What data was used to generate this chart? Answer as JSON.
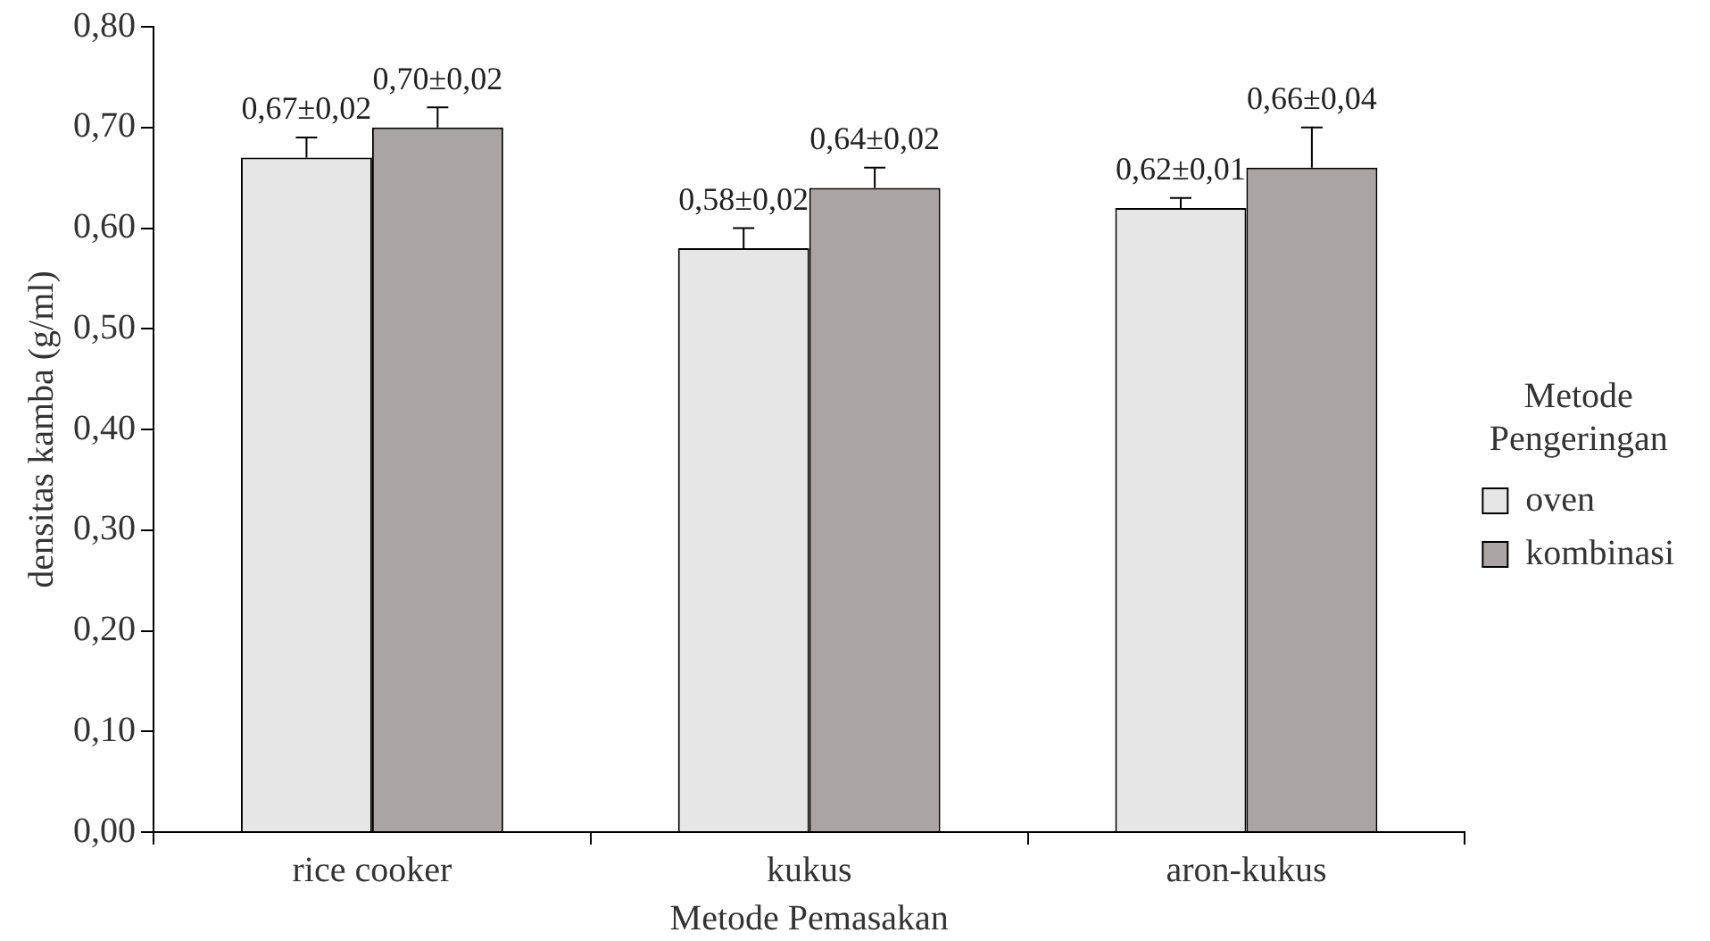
{
  "chart_data": {
    "type": "bar",
    "xlabel": "Metode Pemasakan",
    "ylabel": "densitas kamba (g/ml)",
    "legend_title": "Metode Pengeringan",
    "legend": "right",
    "categories": [
      "rice cooker",
      "kukus",
      "aron-kukus"
    ],
    "series": [
      {
        "name": "oven",
        "color": "#e6e6e6",
        "values": [
          0.67,
          0.58,
          0.62
        ],
        "errors": [
          0.02,
          0.02,
          0.01
        ],
        "value_labels": [
          "0,67±0,02",
          "0,58±0,02",
          "0,62±0,01"
        ]
      },
      {
        "name": "kombinasi",
        "color": "#aaa5a3",
        "values": [
          0.7,
          0.64,
          0.66
        ],
        "errors": [
          0.02,
          0.02,
          0.04
        ],
        "value_labels": [
          "0,70±0,02",
          "0,64±0,02",
          "0,66±0,04"
        ]
      }
    ],
    "ylim": [
      0,
      0.8
    ],
    "yticks": [
      {
        "value": 0,
        "label": "0,00"
      },
      {
        "value": 0.1,
        "label": "0,10"
      },
      {
        "value": 0.2,
        "label": "0,20"
      },
      {
        "value": 0.3,
        "label": "0,30"
      },
      {
        "value": 0.4,
        "label": "0,40"
      },
      {
        "value": 0.5,
        "label": "0,50"
      },
      {
        "value": 0.6,
        "label": "0,60"
      },
      {
        "value": 0.7,
        "label": "0,70"
      },
      {
        "value": 0.8,
        "label": "0,80"
      }
    ],
    "grid": false
  }
}
